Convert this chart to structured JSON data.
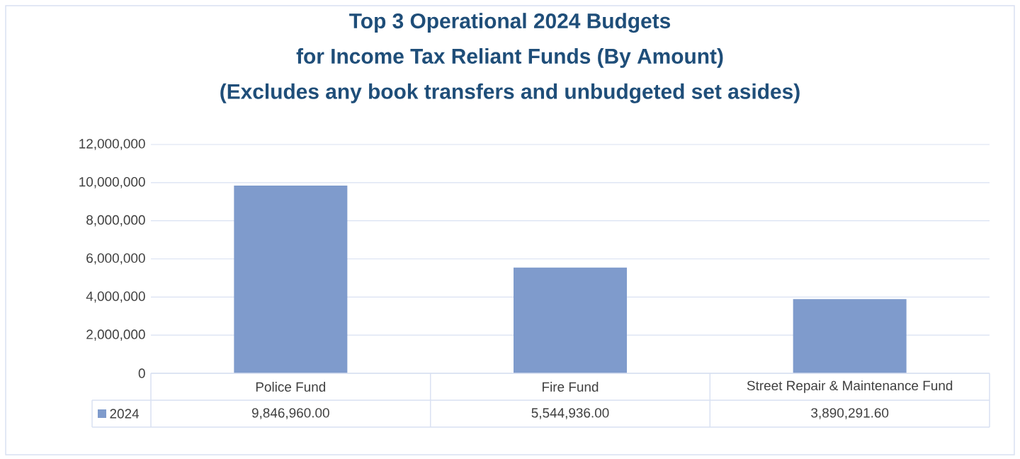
{
  "chart_data": {
    "type": "bar",
    "title": "Top 3 Operational 2024 Budgets\nfor Income Tax Reliant Funds (By Amount)\n(Excludes any book transfers and unbudgeted set asides)",
    "categories": [
      "Police Fund",
      "Fire Fund",
      "Street Repair & Maintenance Fund"
    ],
    "series": [
      {
        "name": "2024",
        "color": "#7f9bcc",
        "values": [
          9846960.0,
          5544936.0,
          3890291.6
        ],
        "value_labels": [
          "9,846,960.00",
          "5,544,936.00",
          "3,890,291.60"
        ]
      }
    ],
    "ylim": [
      0,
      12000000
    ],
    "yticks": [
      {
        "value": 0,
        "label": "0"
      },
      {
        "value": 2000000,
        "label": "2,000,000"
      },
      {
        "value": 4000000,
        "label": "4,000,000"
      },
      {
        "value": 6000000,
        "label": "6,000,000"
      },
      {
        "value": 8000000,
        "label": "8,000,000"
      },
      {
        "value": 10000000,
        "label": "10,000,000"
      },
      {
        "value": 12000000,
        "label": "12,000,000"
      }
    ],
    "grid": "y",
    "legend": "bottom"
  }
}
